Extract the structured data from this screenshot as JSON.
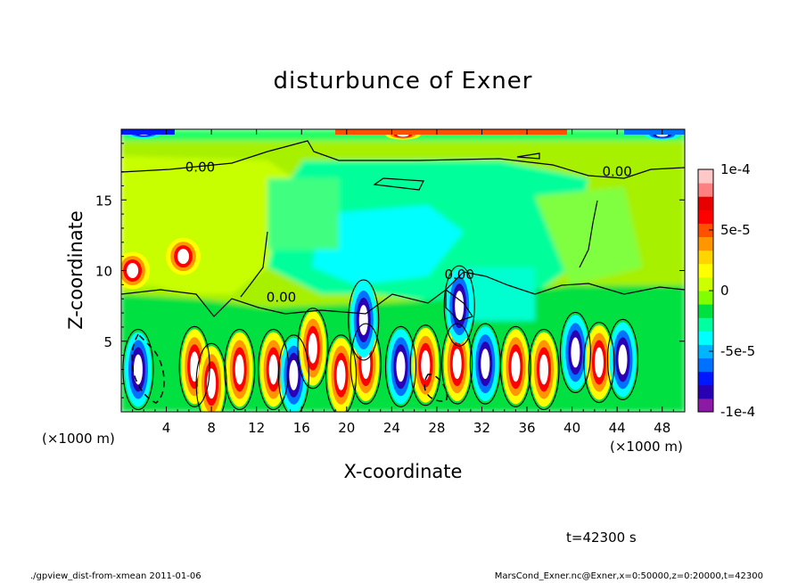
{
  "title": "disturbunce of Exner",
  "chart_data": {
    "type": "heatmap",
    "title": "disturbunce of Exner",
    "xlabel": "X-coordinate",
    "ylabel": "Z-coordinate",
    "x_unit": "(×1000 m)",
    "z_unit": "(×1000 m)",
    "xlim": [
      0,
      50
    ],
    "ylim": [
      0,
      20
    ],
    "x_ticks": [
      "4",
      "8",
      "12",
      "16",
      "20",
      "24",
      "28",
      "32",
      "36",
      "40",
      "44",
      "48"
    ],
    "x_tick_values": [
      4,
      8,
      12,
      16,
      20,
      24,
      28,
      32,
      36,
      40,
      44,
      48
    ],
    "y_ticks": [
      "5",
      "10",
      "15"
    ],
    "y_tick_values": [
      5,
      10,
      15
    ],
    "contour_labels": [
      "0.00",
      "0.00",
      "0.00",
      "0.00"
    ],
    "colorbar": {
      "min": -0.0001,
      "max": 0.0001,
      "tick_labels": [
        "1e-4",
        "5e-5",
        "0",
        "-5e-5",
        "-1e-4"
      ],
      "tick_values": [
        0.0001,
        5e-05,
        0,
        -5e-05,
        -0.0001
      ],
      "colors": [
        "#8c1aa6",
        "#2a00b4",
        "#0018ff",
        "#0070ff",
        "#00b4ff",
        "#00ffff",
        "#00ffa0",
        "#00e040",
        "#80ff00",
        "#ccff00",
        "#ffff00",
        "#ffd400",
        "#ff9600",
        "#ff5000",
        "#ff0000",
        "#e60000",
        "#ff8080",
        "#ffc8c8"
      ]
    },
    "anomalies": [
      {
        "x": 6.5,
        "z": 3.2,
        "sign": "positive"
      },
      {
        "x": 8.0,
        "z": 2.0,
        "sign": "positive"
      },
      {
        "x": 10.5,
        "z": 3.0,
        "sign": "positive"
      },
      {
        "x": 13.5,
        "z": 3.0,
        "sign": "positive"
      },
      {
        "x": 15.3,
        "z": 2.6,
        "sign": "negative"
      },
      {
        "x": 17.0,
        "z": 4.5,
        "sign": "positive"
      },
      {
        "x": 19.5,
        "z": 2.6,
        "sign": "positive"
      },
      {
        "x": 21.7,
        "z": 3.4,
        "sign": "positive"
      },
      {
        "x": 24.8,
        "z": 3.2,
        "sign": "negative"
      },
      {
        "x": 27.0,
        "z": 3.3,
        "sign": "positive"
      },
      {
        "x": 29.8,
        "z": 3.4,
        "sign": "positive"
      },
      {
        "x": 32.3,
        "z": 3.4,
        "sign": "negative"
      },
      {
        "x": 35.0,
        "z": 3.2,
        "sign": "positive"
      },
      {
        "x": 37.5,
        "z": 3.0,
        "sign": "positive"
      },
      {
        "x": 40.3,
        "z": 4.2,
        "sign": "negative"
      },
      {
        "x": 42.4,
        "z": 3.5,
        "sign": "positive"
      },
      {
        "x": 44.5,
        "z": 3.7,
        "sign": "negative"
      },
      {
        "x": 1.5,
        "z": 3.0,
        "sign": "negative"
      },
      {
        "x": 21.5,
        "z": 6.5,
        "sign": "negative"
      },
      {
        "x": 30.0,
        "z": 7.5,
        "sign": "negative"
      },
      {
        "x": 5.5,
        "z": 11.0,
        "sign": "positive"
      },
      {
        "x": 1.0,
        "z": 10.0,
        "sign": "positive"
      },
      {
        "x": 25.0,
        "z": 19.6,
        "sign": "positive"
      },
      {
        "x": 2.0,
        "z": 19.7,
        "sign": "negative"
      },
      {
        "x": 48.0,
        "z": 19.6,
        "sign": "negative"
      }
    ]
  },
  "time_label": "t=42300 s",
  "footer_left": "./gpview_dist-from-xmean   2011-01-06",
  "footer_right": "MarsCond_Exner.nc@Exner,x=0:50000,z=0:20000,t=42300"
}
